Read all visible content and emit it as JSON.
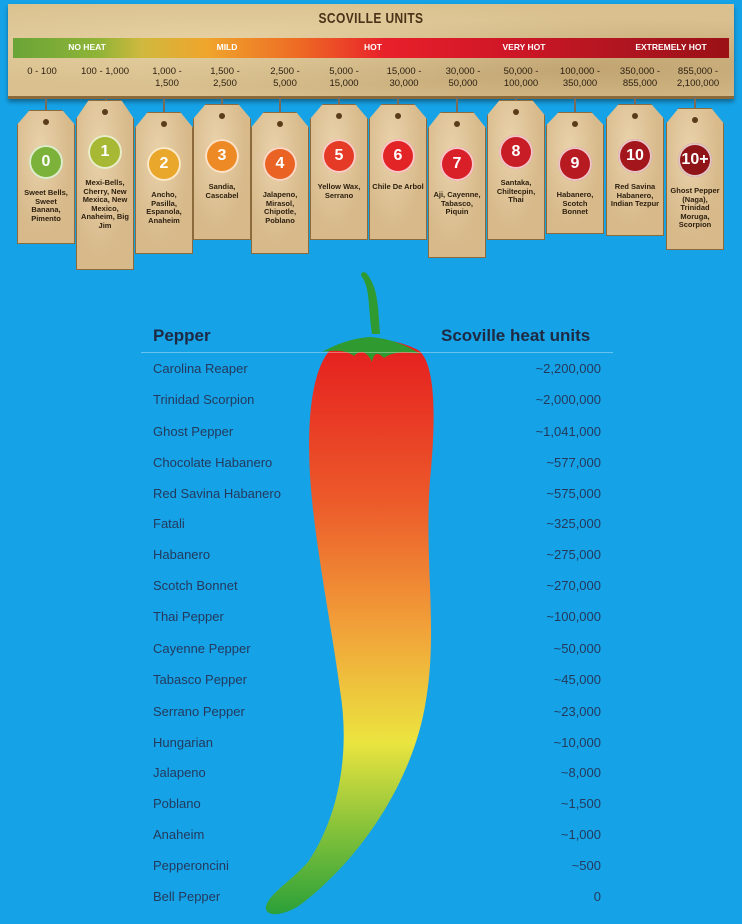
{
  "banner": {
    "title": "SCOVILLE UNITS",
    "heat_levels": [
      "NO HEAT",
      "MILD",
      "HOT",
      "VERY HOT",
      "EXTREMELY HOT"
    ],
    "ranges": [
      "0 - 100",
      "100 - 1,000",
      "1,000 -\n1,500",
      "1,500 -\n2,500",
      "2,500 -\n5,000",
      "5,000 -\n15,000",
      "15,000 -\n30,000",
      "30,000 -\n50,000",
      "50,000 -\n100,000",
      "100,000 -\n350,000",
      "350,000 -\n855,000",
      "855,000 -\n2,100,000"
    ]
  },
  "tags": [
    {
      "level": "0",
      "peppers": "Sweet Bells, Sweet Banana, Pimento",
      "color": "#7cb23a"
    },
    {
      "level": "1",
      "peppers": "Mexi-Bells, Cherry, New Mexica, New Mexico, Anaheim, Big Jim",
      "color": "#a6b834"
    },
    {
      "level": "2",
      "peppers": "Ancho, Pasilla, Espanola, Anaheim",
      "color": "#e9a72c"
    },
    {
      "level": "3",
      "peppers": "Sandia, Cascabel",
      "color": "#ee8a26"
    },
    {
      "level": "4",
      "peppers": "Jalapeno, Mirasol, Chipotle, Poblano",
      "color": "#ea6324"
    },
    {
      "level": "5",
      "peppers": "Yellow Wax, Serrano",
      "color": "#e53a26"
    },
    {
      "level": "6",
      "peppers": "Chile De Arbol",
      "color": "#e32426"
    },
    {
      "level": "7",
      "peppers": "Aji, Cayenne, Tabasco, Piquin",
      "color": "#d91f28"
    },
    {
      "level": "8",
      "peppers": "Santaka, Chiltecpin, Thai",
      "color": "#c81c26"
    },
    {
      "level": "9",
      "peppers": "Habanero, Scotch Bonnet",
      "color": "#b81a22"
    },
    {
      "level": "10",
      "peppers": "Red Savina Habanero, Indian Tezpur",
      "color": "#a3161c"
    },
    {
      "level": "10+",
      "peppers": "Ghost Pepper (Naga), Trinidad Moruga, Scorpion",
      "color": "#8e1418"
    }
  ],
  "table": {
    "col_pepper": "Pepper",
    "col_shu": "Scoville heat units",
    "rows": [
      {
        "name": "Carolina Reaper",
        "shu": "~2,200,000"
      },
      {
        "name": "Trinidad Scorpion",
        "shu": "~2,000,000"
      },
      {
        "name": "Ghost Pepper",
        "shu": "~1,041,000"
      },
      {
        "name": "Chocolate Habanero",
        "shu": "~577,000"
      },
      {
        "name": "Red Savina Habanero",
        "shu": "~575,000"
      },
      {
        "name": "Fatali",
        "shu": "~325,000"
      },
      {
        "name": "Habanero",
        "shu": "~275,000"
      },
      {
        "name": "Scotch Bonnet",
        "shu": "~270,000"
      },
      {
        "name": "Thai Pepper",
        "shu": "~100,000"
      },
      {
        "name": "Cayenne Pepper",
        "shu": "~50,000"
      },
      {
        "name": "Tabasco Pepper",
        "shu": "~45,000"
      },
      {
        "name": "Serrano Pepper",
        "shu": "~23,000"
      },
      {
        "name": "Hungarian",
        "shu": "~10,000"
      },
      {
        "name": "Jalapeno",
        "shu": "~8,000"
      },
      {
        "name": "Poblano",
        "shu": "~1,500"
      },
      {
        "name": "Anaheim",
        "shu": "~1,000"
      },
      {
        "name": "Pepperoncini",
        "shu": "~500"
      },
      {
        "name": "Bell Pepper",
        "shu": "0"
      }
    ]
  }
}
